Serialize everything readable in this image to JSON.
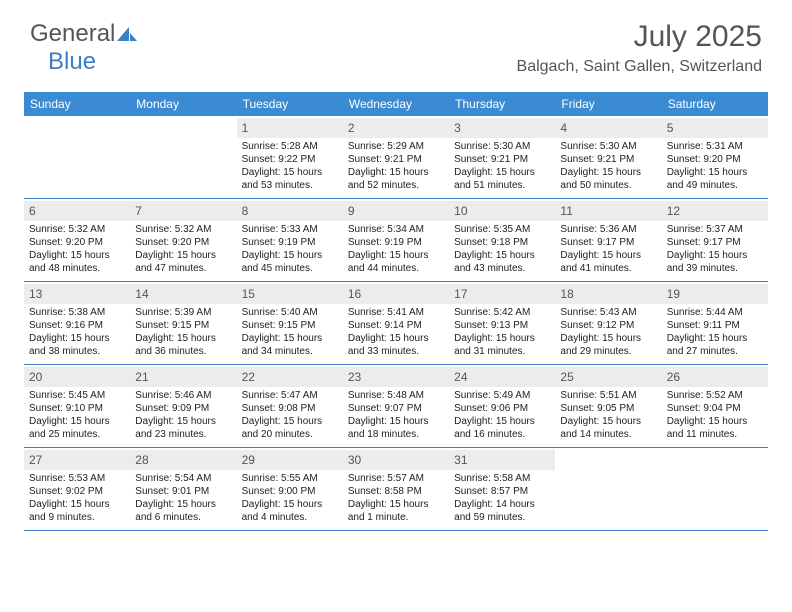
{
  "logo": {
    "text1": "General",
    "text2": "Blue"
  },
  "title": "July 2025",
  "location": "Balgach, Saint Gallen, Switzerland",
  "colors": {
    "header_bg": "#3b8bd4",
    "rule": "#3b7fc4",
    "daynum_bg": "#ececec",
    "text": "#222222",
    "title_text": "#555555"
  },
  "dow": [
    "Sunday",
    "Monday",
    "Tuesday",
    "Wednesday",
    "Thursday",
    "Friday",
    "Saturday"
  ],
  "typography": {
    "title_pt": 30,
    "location_pt": 16,
    "dow_pt": 12,
    "daynum_pt": 12,
    "body_pt": 10
  },
  "weeks": [
    [
      {
        "n": "",
        "sr": "",
        "ss": "",
        "dl": ""
      },
      {
        "n": "",
        "sr": "",
        "ss": "",
        "dl": ""
      },
      {
        "n": "1",
        "sr": "5:28 AM",
        "ss": "9:22 PM",
        "dl": "15 hours and 53 minutes."
      },
      {
        "n": "2",
        "sr": "5:29 AM",
        "ss": "9:21 PM",
        "dl": "15 hours and 52 minutes."
      },
      {
        "n": "3",
        "sr": "5:30 AM",
        "ss": "9:21 PM",
        "dl": "15 hours and 51 minutes."
      },
      {
        "n": "4",
        "sr": "5:30 AM",
        "ss": "9:21 PM",
        "dl": "15 hours and 50 minutes."
      },
      {
        "n": "5",
        "sr": "5:31 AM",
        "ss": "9:20 PM",
        "dl": "15 hours and 49 minutes."
      }
    ],
    [
      {
        "n": "6",
        "sr": "5:32 AM",
        "ss": "9:20 PM",
        "dl": "15 hours and 48 minutes."
      },
      {
        "n": "7",
        "sr": "5:32 AM",
        "ss": "9:20 PM",
        "dl": "15 hours and 47 minutes."
      },
      {
        "n": "8",
        "sr": "5:33 AM",
        "ss": "9:19 PM",
        "dl": "15 hours and 45 minutes."
      },
      {
        "n": "9",
        "sr": "5:34 AM",
        "ss": "9:19 PM",
        "dl": "15 hours and 44 minutes."
      },
      {
        "n": "10",
        "sr": "5:35 AM",
        "ss": "9:18 PM",
        "dl": "15 hours and 43 minutes."
      },
      {
        "n": "11",
        "sr": "5:36 AM",
        "ss": "9:17 PM",
        "dl": "15 hours and 41 minutes."
      },
      {
        "n": "12",
        "sr": "5:37 AM",
        "ss": "9:17 PM",
        "dl": "15 hours and 39 minutes."
      }
    ],
    [
      {
        "n": "13",
        "sr": "5:38 AM",
        "ss": "9:16 PM",
        "dl": "15 hours and 38 minutes."
      },
      {
        "n": "14",
        "sr": "5:39 AM",
        "ss": "9:15 PM",
        "dl": "15 hours and 36 minutes."
      },
      {
        "n": "15",
        "sr": "5:40 AM",
        "ss": "9:15 PM",
        "dl": "15 hours and 34 minutes."
      },
      {
        "n": "16",
        "sr": "5:41 AM",
        "ss": "9:14 PM",
        "dl": "15 hours and 33 minutes."
      },
      {
        "n": "17",
        "sr": "5:42 AM",
        "ss": "9:13 PM",
        "dl": "15 hours and 31 minutes."
      },
      {
        "n": "18",
        "sr": "5:43 AM",
        "ss": "9:12 PM",
        "dl": "15 hours and 29 minutes."
      },
      {
        "n": "19",
        "sr": "5:44 AM",
        "ss": "9:11 PM",
        "dl": "15 hours and 27 minutes."
      }
    ],
    [
      {
        "n": "20",
        "sr": "5:45 AM",
        "ss": "9:10 PM",
        "dl": "15 hours and 25 minutes."
      },
      {
        "n": "21",
        "sr": "5:46 AM",
        "ss": "9:09 PM",
        "dl": "15 hours and 23 minutes."
      },
      {
        "n": "22",
        "sr": "5:47 AM",
        "ss": "9:08 PM",
        "dl": "15 hours and 20 minutes."
      },
      {
        "n": "23",
        "sr": "5:48 AM",
        "ss": "9:07 PM",
        "dl": "15 hours and 18 minutes."
      },
      {
        "n": "24",
        "sr": "5:49 AM",
        "ss": "9:06 PM",
        "dl": "15 hours and 16 minutes."
      },
      {
        "n": "25",
        "sr": "5:51 AM",
        "ss": "9:05 PM",
        "dl": "15 hours and 14 minutes."
      },
      {
        "n": "26",
        "sr": "5:52 AM",
        "ss": "9:04 PM",
        "dl": "15 hours and 11 minutes."
      }
    ],
    [
      {
        "n": "27",
        "sr": "5:53 AM",
        "ss": "9:02 PM",
        "dl": "15 hours and 9 minutes."
      },
      {
        "n": "28",
        "sr": "5:54 AM",
        "ss": "9:01 PM",
        "dl": "15 hours and 6 minutes."
      },
      {
        "n": "29",
        "sr": "5:55 AM",
        "ss": "9:00 PM",
        "dl": "15 hours and 4 minutes."
      },
      {
        "n": "30",
        "sr": "5:57 AM",
        "ss": "8:58 PM",
        "dl": "15 hours and 1 minute."
      },
      {
        "n": "31",
        "sr": "5:58 AM",
        "ss": "8:57 PM",
        "dl": "14 hours and 59 minutes."
      },
      {
        "n": "",
        "sr": "",
        "ss": "",
        "dl": ""
      },
      {
        "n": "",
        "sr": "",
        "ss": "",
        "dl": ""
      }
    ]
  ],
  "labels": {
    "sunrise": "Sunrise:",
    "sunset": "Sunset:",
    "daylight": "Daylight:"
  }
}
